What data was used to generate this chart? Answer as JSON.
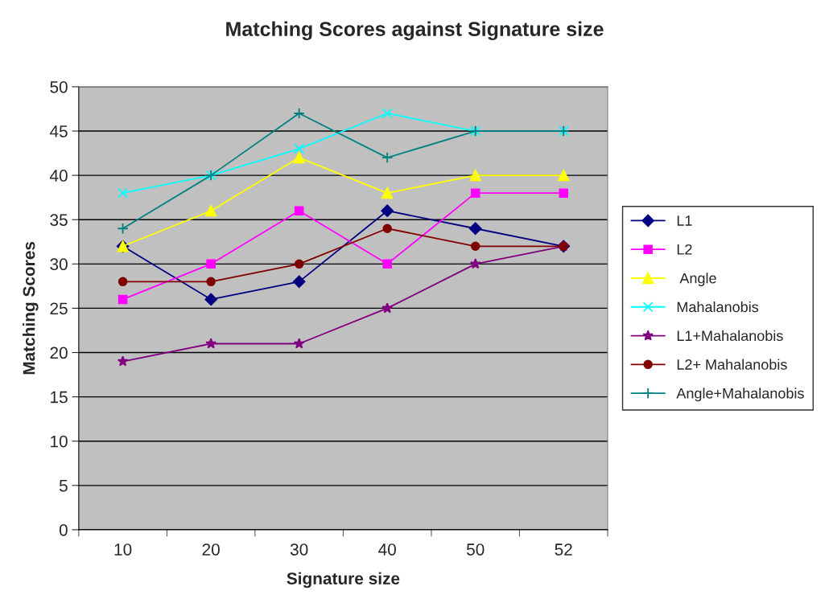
{
  "chart_data": {
    "type": "line",
    "title": "Matching Scores against Signature size",
    "xlabel": "Signature size",
    "ylabel": "Matching Scores",
    "categories": [
      "10",
      "20",
      "30",
      "40",
      "50",
      "52"
    ],
    "series": [
      {
        "name": "L1",
        "color": "#000080",
        "marker": "diamond",
        "values": [
          32,
          26,
          28,
          36,
          34,
          32
        ]
      },
      {
        "name": "L2",
        "color": "#ff00ff",
        "marker": "square",
        "values": [
          26,
          30,
          36,
          30,
          38,
          38
        ]
      },
      {
        "name": " Angle",
        "color": "#ffff00",
        "marker": "triangle",
        "values": [
          32,
          36,
          42,
          38,
          40,
          40
        ]
      },
      {
        "name": "Mahalanobis",
        "color": "#00ffff",
        "marker": "cross",
        "values": [
          38,
          40,
          43,
          47,
          45,
          45
        ]
      },
      {
        "name": "L1+Mahalanobis",
        "color": "#800080",
        "marker": "star",
        "values": [
          19,
          21,
          21,
          25,
          30,
          32
        ]
      },
      {
        "name": "L2+ Mahalanobis",
        "color": "#800000",
        "marker": "circle",
        "values": [
          28,
          28,
          30,
          34,
          32,
          32
        ]
      },
      {
        "name": "Angle+Mahalanobis",
        "color": "#008080",
        "marker": "plus",
        "values": [
          34,
          40,
          47,
          42,
          45,
          45
        ]
      }
    ],
    "ylim": [
      0,
      50
    ],
    "yticks": [
      0,
      5,
      10,
      15,
      20,
      25,
      30,
      35,
      40,
      45,
      50
    ],
    "grid": "y",
    "legend": "right",
    "line_style": "solid"
  }
}
